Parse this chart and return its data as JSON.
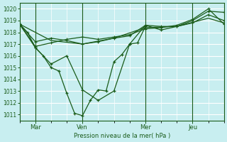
{
  "background_color": "#c8eef0",
  "grid_color": "#ffffff",
  "line_color": "#1a5c1a",
  "ylabel": "Pression niveau de la mer( hPa )",
  "ylim": [
    1010.5,
    1020.5
  ],
  "yticks": [
    1011,
    1012,
    1013,
    1014,
    1015,
    1016,
    1017,
    1018,
    1019,
    1020
  ],
  "x_tick_labels": [
    "Mar",
    "Ven",
    "Mer",
    "Jeu"
  ],
  "x_tick_positions": [
    24,
    96,
    192,
    264
  ],
  "xlim": [
    0,
    312
  ],
  "series_deep_dip": {
    "x": [
      0,
      12,
      24,
      36,
      48,
      60,
      72,
      84,
      96,
      108,
      120,
      132,
      144,
      156,
      168,
      180,
      192
    ],
    "y": [
      1018.7,
      1018.0,
      1016.7,
      1016.0,
      1015.0,
      1014.7,
      1012.8,
      1011.1,
      1010.9,
      1012.2,
      1013.1,
      1013.0,
      1015.5,
      1016.1,
      1017.0,
      1017.1,
      1018.5
    ]
  },
  "series_triangle": {
    "x": [
      0,
      24,
      48,
      72,
      96,
      120,
      144,
      168,
      192,
      216,
      240,
      264,
      288,
      312
    ],
    "y": [
      1018.7,
      1016.7,
      1015.3,
      1016.0,
      1013.1,
      1012.2,
      1013.0,
      1017.0,
      1018.6,
      1018.2,
      1018.5,
      1019.0,
      1019.8,
      1019.7
    ]
  },
  "series_high1": {
    "x": [
      0,
      24,
      48,
      72,
      96,
      120,
      144,
      168,
      192,
      216,
      240,
      264,
      288,
      312
    ],
    "y": [
      1018.7,
      1017.2,
      1017.5,
      1017.3,
      1017.0,
      1017.2,
      1017.5,
      1017.7,
      1018.6,
      1018.5,
      1018.5,
      1018.8,
      1019.5,
      1019.0
    ]
  },
  "series_high2": {
    "x": [
      0,
      24,
      48,
      72,
      96,
      120,
      144,
      168,
      192,
      216,
      240,
      264,
      288,
      312
    ],
    "y": [
      1018.7,
      1016.8,
      1017.1,
      1017.4,
      1017.6,
      1017.4,
      1017.6,
      1017.8,
      1018.3,
      1018.4,
      1018.6,
      1019.1,
      1020.0,
      1018.7
    ]
  },
  "series_high3": {
    "x": [
      0,
      48,
      96,
      144,
      192,
      240,
      288,
      312
    ],
    "y": [
      1018.7,
      1017.3,
      1017.0,
      1017.5,
      1018.4,
      1018.5,
      1019.2,
      1018.8
    ]
  }
}
